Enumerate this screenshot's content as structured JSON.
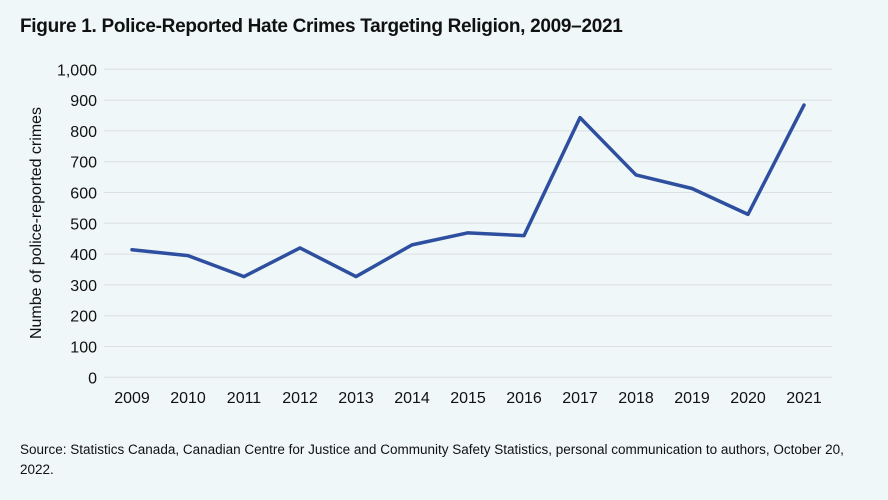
{
  "chart_data": {
    "type": "line",
    "title": "Figure 1. Police-Reported Hate Crimes Targeting Religion, 2009–2021",
    "xlabel": "",
    "ylabel": "Numbe of police-reported crimes",
    "categories": [
      "2009",
      "2010",
      "2011",
      "2012",
      "2013",
      "2014",
      "2015",
      "2016",
      "2017",
      "2018",
      "2019",
      "2020",
      "2021"
    ],
    "values": [
      414,
      395,
      327,
      420,
      327,
      430,
      469,
      460,
      843,
      657,
      613,
      529,
      884
    ],
    "ylim": [
      0,
      1000
    ],
    "yticks": [
      "0",
      "100",
      "200",
      "300",
      "400",
      "500",
      "600",
      "700",
      "800",
      "900",
      "1,000"
    ],
    "grid": true,
    "legend": "none",
    "line_color": "#2e4f9f",
    "grid_color": "#dcdfe3"
  },
  "source": "Source: Statistics Canada, Canadian Centre for Justice and Community Safety Statistics, personal communication to authors, October 20, 2022."
}
